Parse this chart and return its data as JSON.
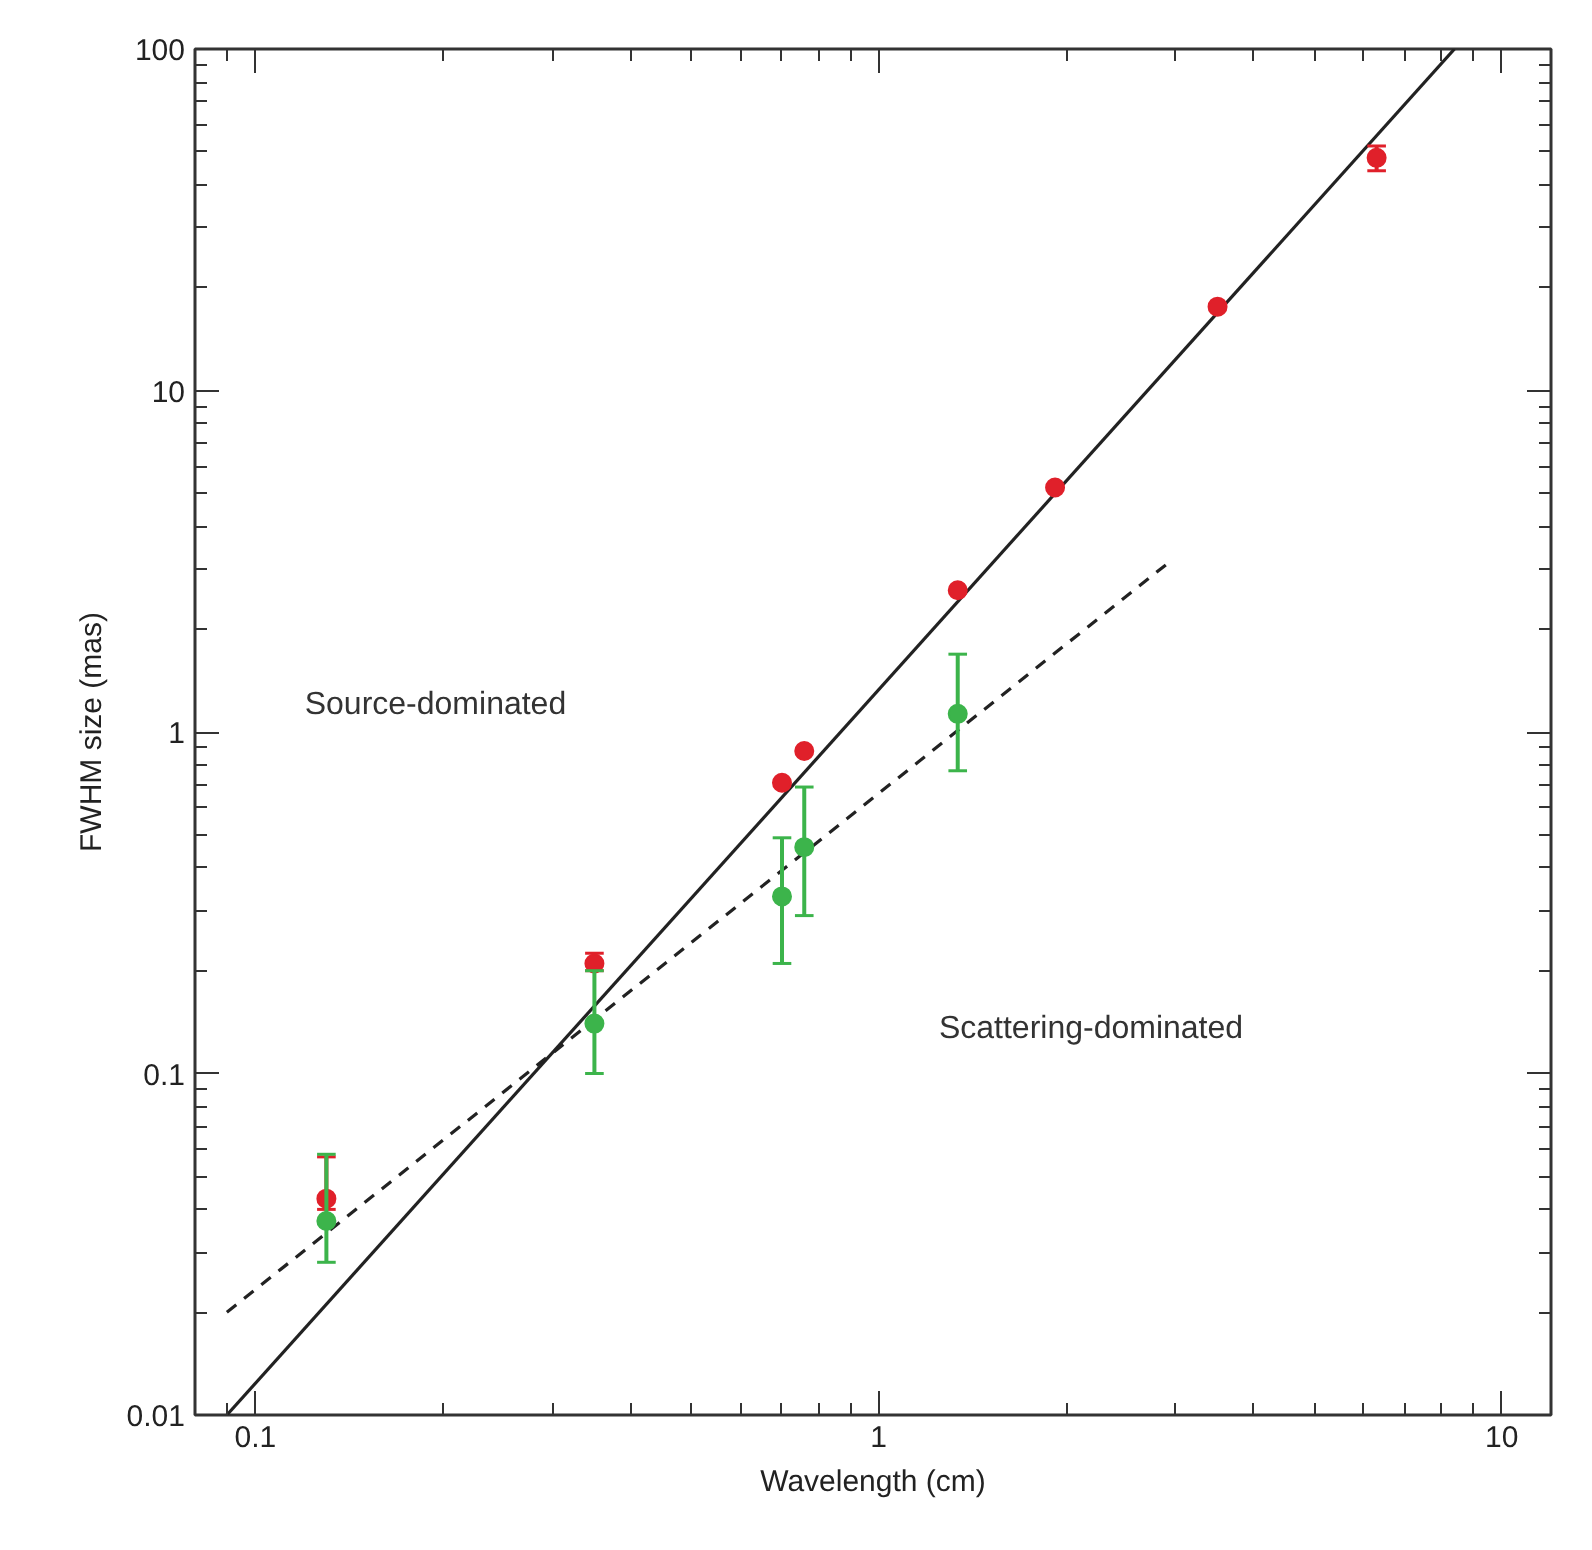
{
  "chart_data": {
    "type": "scatter",
    "xlabel": "Wavelength (cm)",
    "ylabel": "FWHM size (mas)",
    "log": "xy",
    "grid": false,
    "marker": "circle",
    "xlim": [
      0.08,
      12
    ],
    "ylim": [
      0.01,
      100
    ],
    "xticks": [
      0.1,
      1,
      10
    ],
    "yticks": [
      0.01,
      0.1,
      1,
      10,
      100
    ],
    "annotations": [
      "Source-dominated",
      "Scattering-dominated"
    ],
    "series": [
      {
        "type": "line",
        "marker": "none",
        "color": "#222222",
        "line_style": "solid",
        "x": [
          0.09,
          8.4
        ],
        "values": [
          0.01,
          100
        ]
      },
      {
        "type": "line",
        "marker": "none",
        "color": "#222222",
        "line_style": "dashed",
        "x": [
          0.09,
          2.9
        ],
        "values": [
          0.02,
          3.1
        ]
      },
      {
        "color": "#e0202a",
        "x": [
          0.13,
          0.35,
          0.7,
          0.76,
          1.34,
          1.92,
          3.5,
          6.3
        ],
        "values": [
          0.043,
          0.21,
          0.71,
          0.88,
          2.6,
          5.2,
          17.6,
          48
        ],
        "errors": [
          [
            0.04,
            0.057
          ],
          [
            0.2,
            0.225
          ],
          null,
          null,
          null,
          null,
          null,
          [
            44,
            52
          ]
        ]
      },
      {
        "color": "#3cb44b",
        "x": [
          0.13,
          0.35,
          0.7,
          0.76,
          1.34
        ],
        "values": [
          0.037,
          0.14,
          0.33,
          0.46,
          1.13
        ],
        "errors": [
          [
            0.028,
            0.058
          ],
          [
            0.1,
            0.2
          ],
          [
            0.21,
            0.49
          ],
          [
            0.29,
            0.69
          ],
          [
            0.77,
            1.69
          ]
        ]
      }
    ]
  }
}
